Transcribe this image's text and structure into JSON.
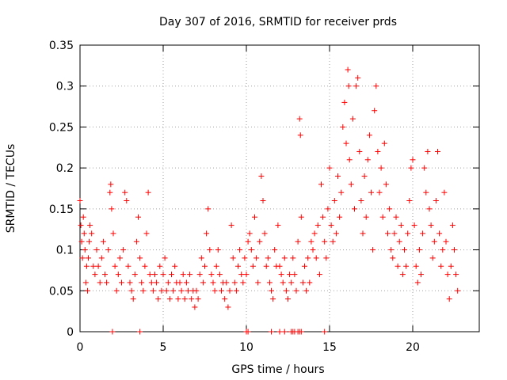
{
  "chart_data": {
    "type": "scatter",
    "title": "Day 307 of 2016, SRMTID for receiver prds",
    "xlabel": "GPS time / hours",
    "ylabel": "SRMTID / TECUs",
    "xlim": [
      0,
      24
    ],
    "ylim": [
      0,
      0.35
    ],
    "xticks": [
      0,
      5,
      10,
      15,
      20
    ],
    "xtick_labels": [
      "0",
      "5",
      "10",
      "15",
      "20"
    ],
    "yticks": [
      0,
      0.05,
      0.1,
      0.15,
      0.2,
      0.25,
      0.3,
      0.35
    ],
    "ytick_labels": [
      "0",
      "0.05",
      "0.1",
      "0.15",
      "0.2",
      "0.25",
      "0.3",
      "0.35"
    ],
    "grid": true,
    "marker": "plus",
    "color": "#ff0000",
    "series": [
      {
        "name": "prds",
        "points": [
          [
            0.0,
            0.16
          ],
          [
            0.05,
            0.13
          ],
          [
            0.1,
            0.11
          ],
          [
            0.15,
            0.09
          ],
          [
            0.2,
            0.14
          ],
          [
            0.25,
            0.12
          ],
          [
            0.3,
            0.1
          ],
          [
            0.35,
            0.06
          ],
          [
            0.4,
            0.08
          ],
          [
            0.45,
            0.05
          ],
          [
            0.5,
            0.09
          ],
          [
            0.55,
            0.11
          ],
          [
            0.6,
            0.13
          ],
          [
            0.7,
            0.12
          ],
          [
            0.8,
            0.08
          ],
          [
            0.9,
            0.07
          ],
          [
            1.0,
            0.1
          ],
          [
            1.1,
            0.08
          ],
          [
            1.2,
            0.06
          ],
          [
            1.3,
            0.09
          ],
          [
            1.4,
            0.11
          ],
          [
            1.5,
            0.07
          ],
          [
            1.6,
            0.06
          ],
          [
            1.7,
            0.1
          ],
          [
            1.8,
            0.17
          ],
          [
            1.85,
            0.18
          ],
          [
            1.9,
            0.15
          ],
          [
            2.0,
            0.12
          ],
          [
            2.1,
            0.08
          ],
          [
            2.2,
            0.05
          ],
          [
            2.3,
            0.07
          ],
          [
            2.4,
            0.09
          ],
          [
            2.5,
            0.06
          ],
          [
            2.6,
            0.1
          ],
          [
            2.7,
            0.17
          ],
          [
            2.8,
            0.16
          ],
          [
            2.9,
            0.08
          ],
          [
            3.0,
            0.06
          ],
          [
            3.1,
            0.05
          ],
          [
            3.2,
            0.04
          ],
          [
            3.3,
            0.07
          ],
          [
            3.4,
            0.11
          ],
          [
            3.5,
            0.14
          ],
          [
            3.6,
            0.09
          ],
          [
            3.7,
            0.06
          ],
          [
            3.8,
            0.05
          ],
          [
            3.9,
            0.08
          ],
          [
            4.0,
            0.12
          ],
          [
            4.1,
            0.17
          ],
          [
            4.2,
            0.07
          ],
          [
            4.3,
            0.06
          ],
          [
            4.4,
            0.05
          ],
          [
            4.5,
            0.07
          ],
          [
            4.6,
            0.06
          ],
          [
            4.7,
            0.04
          ],
          [
            4.8,
            0.08
          ],
          [
            4.9,
            0.05
          ],
          [
            5.0,
            0.07
          ],
          [
            5.1,
            0.09
          ],
          [
            5.2,
            0.05
          ],
          [
            5.3,
            0.06
          ],
          [
            5.4,
            0.04
          ],
          [
            5.5,
            0.07
          ],
          [
            5.6,
            0.05
          ],
          [
            5.7,
            0.08
          ],
          [
            5.8,
            0.06
          ],
          [
            5.9,
            0.04
          ],
          [
            6.0,
            0.06
          ],
          [
            6.1,
            0.05
          ],
          [
            6.2,
            0.07
          ],
          [
            6.3,
            0.04
          ],
          [
            6.4,
            0.06
          ],
          [
            6.5,
            0.05
          ],
          [
            6.6,
            0.07
          ],
          [
            6.7,
            0.04
          ],
          [
            6.8,
            0.05
          ],
          [
            6.9,
            0.03
          ],
          [
            7.0,
            0.05
          ],
          [
            7.1,
            0.04
          ],
          [
            7.2,
            0.07
          ],
          [
            7.3,
            0.09
          ],
          [
            7.4,
            0.06
          ],
          [
            7.5,
            0.08
          ],
          [
            7.6,
            0.12
          ],
          [
            7.7,
            0.15
          ],
          [
            7.8,
            0.1
          ],
          [
            7.9,
            0.07
          ],
          [
            8.0,
            0.06
          ],
          [
            8.1,
            0.05
          ],
          [
            8.2,
            0.08
          ],
          [
            8.3,
            0.1
          ],
          [
            8.4,
            0.07
          ],
          [
            8.5,
            0.05
          ],
          [
            8.6,
            0.06
          ],
          [
            8.7,
            0.04
          ],
          [
            8.8,
            0.06
          ],
          [
            8.9,
            0.03
          ],
          [
            9.0,
            0.05
          ],
          [
            9.1,
            0.13
          ],
          [
            9.2,
            0.09
          ],
          [
            9.3,
            0.06
          ],
          [
            9.4,
            0.05
          ],
          [
            9.5,
            0.08
          ],
          [
            9.6,
            0.1
          ],
          [
            9.7,
            0.07
          ],
          [
            9.8,
            0.06
          ],
          [
            9.9,
            0.09
          ],
          [
            10.0,
            0.07
          ],
          [
            10.1,
            0.11
          ],
          [
            10.2,
            0.12
          ],
          [
            10.3,
            0.1
          ],
          [
            10.4,
            0.08
          ],
          [
            10.5,
            0.14
          ],
          [
            10.6,
            0.09
          ],
          [
            10.7,
            0.06
          ],
          [
            10.8,
            0.11
          ],
          [
            10.9,
            0.19
          ],
          [
            11.0,
            0.16
          ],
          [
            11.1,
            0.12
          ],
          [
            11.2,
            0.08
          ],
          [
            11.3,
            0.09
          ],
          [
            11.4,
            0.06
          ],
          [
            11.5,
            0.05
          ],
          [
            11.6,
            0.04
          ],
          [
            11.7,
            0.1
          ],
          [
            11.8,
            0.08
          ],
          [
            11.9,
            0.13
          ],
          [
            12.0,
            0.08
          ],
          [
            12.1,
            0.07
          ],
          [
            12.2,
            0.06
          ],
          [
            12.3,
            0.09
          ],
          [
            12.4,
            0.05
          ],
          [
            12.5,
            0.04
          ],
          [
            12.6,
            0.07
          ],
          [
            12.7,
            0.06
          ],
          [
            12.8,
            0.09
          ],
          [
            12.9,
            0.07
          ],
          [
            13.0,
            0.05
          ],
          [
            13.1,
            0.11
          ],
          [
            13.2,
            0.26
          ],
          [
            13.25,
            0.24
          ],
          [
            13.3,
            0.14
          ],
          [
            13.4,
            0.06
          ],
          [
            13.5,
            0.08
          ],
          [
            13.6,
            0.05
          ],
          [
            13.7,
            0.09
          ],
          [
            13.8,
            0.06
          ],
          [
            13.9,
            0.11
          ],
          [
            14.0,
            0.1
          ],
          [
            14.1,
            0.12
          ],
          [
            14.2,
            0.09
          ],
          [
            14.3,
            0.13
          ],
          [
            14.4,
            0.07
          ],
          [
            14.5,
            0.18
          ],
          [
            14.6,
            0.14
          ],
          [
            14.7,
            0.11
          ],
          [
            14.8,
            0.09
          ],
          [
            14.9,
            0.15
          ],
          [
            15.0,
            0.2
          ],
          [
            15.1,
            0.13
          ],
          [
            15.2,
            0.11
          ],
          [
            15.3,
            0.16
          ],
          [
            15.4,
            0.12
          ],
          [
            15.5,
            0.19
          ],
          [
            15.6,
            0.14
          ],
          [
            15.7,
            0.17
          ],
          [
            15.8,
            0.25
          ],
          [
            15.9,
            0.28
          ],
          [
            16.0,
            0.23
          ],
          [
            16.1,
            0.32
          ],
          [
            16.15,
            0.3
          ],
          [
            16.2,
            0.21
          ],
          [
            16.3,
            0.18
          ],
          [
            16.4,
            0.26
          ],
          [
            16.5,
            0.15
          ],
          [
            16.6,
            0.3
          ],
          [
            16.7,
            0.31
          ],
          [
            16.8,
            0.22
          ],
          [
            16.9,
            0.16
          ],
          [
            17.0,
            0.12
          ],
          [
            17.1,
            0.19
          ],
          [
            17.2,
            0.14
          ],
          [
            17.3,
            0.21
          ],
          [
            17.4,
            0.24
          ],
          [
            17.5,
            0.17
          ],
          [
            17.6,
            0.1
          ],
          [
            17.7,
            0.27
          ],
          [
            17.8,
            0.3
          ],
          [
            17.9,
            0.22
          ],
          [
            18.0,
            0.17
          ],
          [
            18.1,
            0.2
          ],
          [
            18.2,
            0.14
          ],
          [
            18.3,
            0.23
          ],
          [
            18.4,
            0.18
          ],
          [
            18.5,
            0.12
          ],
          [
            18.6,
            0.15
          ],
          [
            18.7,
            0.1
          ],
          [
            18.8,
            0.09
          ],
          [
            18.9,
            0.12
          ],
          [
            19.0,
            0.14
          ],
          [
            19.1,
            0.08
          ],
          [
            19.2,
            0.11
          ],
          [
            19.3,
            0.13
          ],
          [
            19.4,
            0.07
          ],
          [
            19.5,
            0.1
          ],
          [
            19.6,
            0.08
          ],
          [
            19.7,
            0.12
          ],
          [
            19.8,
            0.16
          ],
          [
            19.9,
            0.2
          ],
          [
            20.0,
            0.21
          ],
          [
            20.1,
            0.13
          ],
          [
            20.2,
            0.08
          ],
          [
            20.3,
            0.06
          ],
          [
            20.4,
            0.1
          ],
          [
            20.5,
            0.07
          ],
          [
            20.6,
            0.12
          ],
          [
            20.7,
            0.2
          ],
          [
            20.8,
            0.17
          ],
          [
            20.9,
            0.22
          ],
          [
            21.0,
            0.15
          ],
          [
            21.1,
            0.13
          ],
          [
            21.2,
            0.09
          ],
          [
            21.3,
            0.11
          ],
          [
            21.4,
            0.16
          ],
          [
            21.5,
            0.22
          ],
          [
            21.6,
            0.12
          ],
          [
            21.7,
            0.08
          ],
          [
            21.8,
            0.1
          ],
          [
            21.9,
            0.17
          ],
          [
            22.0,
            0.11
          ],
          [
            22.1,
            0.07
          ],
          [
            22.2,
            0.04
          ],
          [
            22.3,
            0.08
          ],
          [
            22.4,
            0.13
          ],
          [
            22.5,
            0.1
          ],
          [
            22.6,
            0.07
          ],
          [
            22.7,
            0.05
          ],
          [
            1.95,
            0.0
          ],
          [
            3.6,
            0.0
          ],
          [
            10.0,
            0.0
          ],
          [
            10.1,
            0.0
          ],
          [
            11.5,
            0.0
          ],
          [
            12.0,
            0.0
          ],
          [
            12.3,
            0.0
          ],
          [
            12.7,
            0.0
          ],
          [
            12.8,
            0.0
          ],
          [
            12.9,
            0.0
          ],
          [
            13.1,
            0.0
          ],
          [
            13.2,
            0.0
          ],
          [
            13.3,
            0.0
          ],
          [
            14.7,
            0.0
          ]
        ]
      }
    ]
  }
}
